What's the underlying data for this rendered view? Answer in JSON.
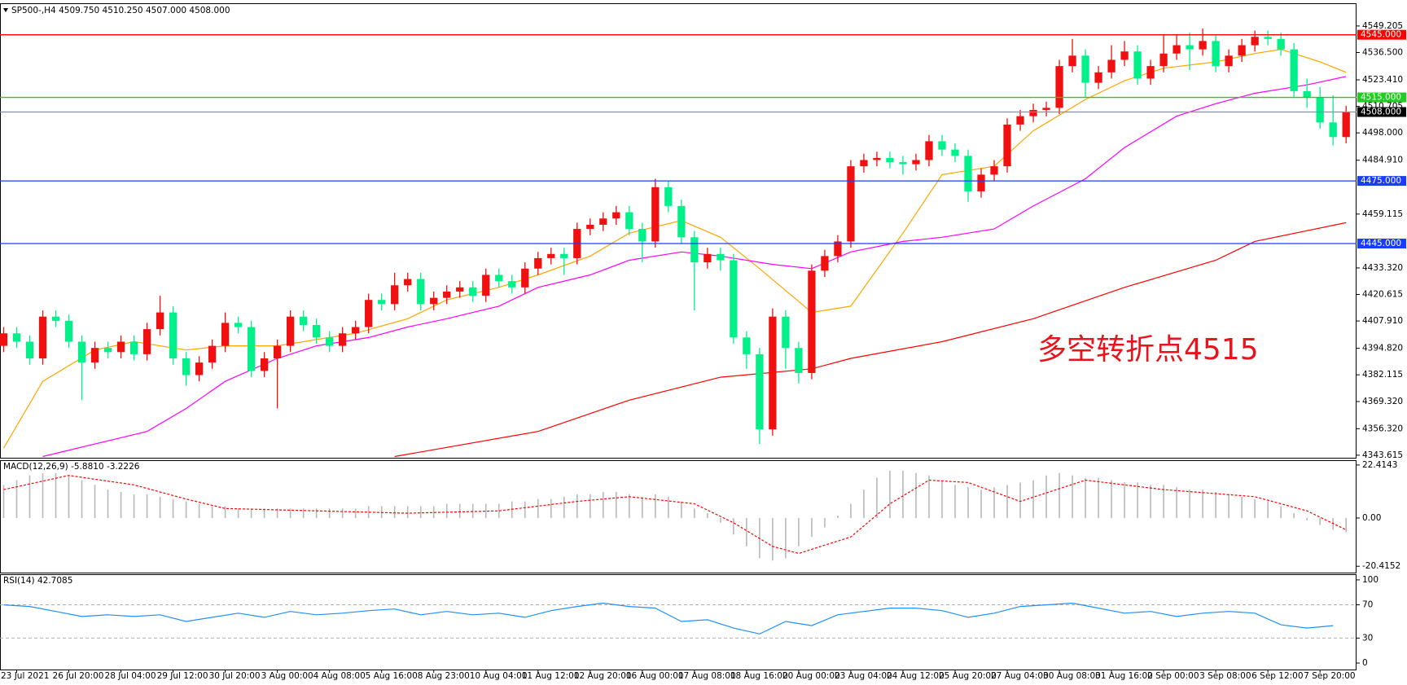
{
  "chart_data": [
    {
      "type": "candlestick",
      "title": "SP500-,H4  4509.750 4510.250 4507.000 4508.000",
      "annotation": "多空转折点4515",
      "up_color": "#f01010",
      "down_color": "#00f08a",
      "xlim": [
        -0.28,
        103.8
      ],
      "xticks": [
        {
          "value": 1,
          "label": "23 Jul 2021"
        },
        {
          "value": 5,
          "label": "26 Jul 20:00"
        },
        {
          "value": 9,
          "label": "28 Jul 04:00"
        },
        {
          "value": 13,
          "label": "29 Jul 12:00"
        },
        {
          "value": 17,
          "label": "30 Jul 20:00"
        },
        {
          "value": 21,
          "label": "3 Aug 00:00"
        },
        {
          "value": 25,
          "label": "4 Aug 08:00"
        },
        {
          "value": 29,
          "label": "5 Aug 16:00"
        },
        {
          "value": 33,
          "label": "8 Aug 23:00"
        },
        {
          "value": 37,
          "label": "10 Aug 04:00"
        },
        {
          "value": 41,
          "label": "11 Aug 12:00"
        },
        {
          "value": 45,
          "label": "12 Aug 20:00"
        },
        {
          "value": 49,
          "label": "16 Aug 00:00"
        },
        {
          "value": 53,
          "label": "17 Aug 08:00"
        },
        {
          "value": 57,
          "label": "18 Aug 16:00"
        },
        {
          "value": 61,
          "label": "20 Aug 00:00"
        },
        {
          "value": 65,
          "label": "23 Aug 04:00"
        },
        {
          "value": 69,
          "label": "24 Aug 12:00"
        },
        {
          "value": 73,
          "label": "25 Aug 20:00"
        },
        {
          "value": 77,
          "label": "27 Aug 04:00"
        },
        {
          "value": 81,
          "label": "30 Aug 08:00"
        },
        {
          "value": 85,
          "label": "31 Aug 16:00"
        },
        {
          "value": 89,
          "label": "2 Sep 00:00"
        },
        {
          "value": 93,
          "label": "3 Sep 08:00"
        },
        {
          "value": 97,
          "label": "6 Sep 12:00"
        },
        {
          "value": 101,
          "label": "7 Sep 20:00"
        }
      ],
      "ylim": [
        4342.4,
        4559.7
      ],
      "yticks": [
        {
          "value": 4549.205,
          "label": "4549.205"
        },
        {
          "value": 4536.5,
          "label": "4536.500"
        },
        {
          "value": 4523.41,
          "label": "4523.410"
        },
        {
          "value": 4510.705,
          "label": "4510.705"
        },
        {
          "value": 4498,
          "label": "4498.000"
        },
        {
          "value": 4484.91,
          "label": "4484.910"
        },
        {
          "value": 4459.115,
          "label": "4459.115"
        },
        {
          "value": 4433.32,
          "label": "4433.320"
        },
        {
          "value": 4420.615,
          "label": "4420.615"
        },
        {
          "value": 4407.91,
          "label": "4407.910"
        },
        {
          "value": 4394.82,
          "label": "4394.820"
        },
        {
          "value": 4382.115,
          "label": "4382.115"
        },
        {
          "value": 4369.32,
          "label": "4369.320"
        },
        {
          "value": 4356.32,
          "label": "4356.320"
        },
        {
          "value": 4343.615,
          "label": "4343.615"
        }
      ],
      "open": [
        4396,
        4402,
        4398,
        4390,
        4410,
        4408,
        4398,
        4388,
        4395,
        4393,
        4398,
        4392,
        4404,
        4412,
        4390,
        4382,
        4388,
        4396,
        4407,
        4405,
        4384,
        4390,
        4396,
        4410,
        4406,
        4400,
        4396,
        4402,
        4405,
        4418,
        4416,
        4425,
        4428,
        4416,
        4419,
        4422,
        4424,
        4420,
        4430,
        4427,
        4424,
        4433,
        4438,
        4440,
        4438,
        4452,
        4454,
        4457,
        4460,
        4452,
        4446,
        4472,
        4463,
        4448,
        4436,
        4440,
        4437,
        4400,
        4392,
        4356,
        4410,
        4395,
        4383,
        4432,
        4439,
        4446,
        4482,
        4485,
        4486,
        4484,
        4483,
        4485,
        4494,
        4490,
        4487,
        4470,
        4478,
        4482,
        4502,
        4506,
        4509,
        4510,
        4530,
        4535,
        4522,
        4527,
        4533,
        4537,
        4524,
        4530,
        4536,
        4540,
        4538,
        4542,
        4530,
        4535,
        4540,
        4544,
        4543,
        4538,
        4518,
        4515,
        4503,
        4496
      ],
      "high": [
        4405,
        4405,
        4401,
        4413,
        4413,
        4411,
        4401,
        4398,
        4398,
        4401,
        4401,
        4407,
        4420,
        4415,
        4393,
        4391,
        4399,
        4412,
        4410,
        4408,
        4393,
        4399,
        4413,
        4413,
        4409,
        4403,
        4405,
        4408,
        4421,
        4421,
        4431,
        4431,
        4431,
        4422,
        4425,
        4427,
        4427,
        4433,
        4433,
        4430,
        4436,
        4441,
        4443,
        4443,
        4455,
        4457,
        4460,
        4463,
        4463,
        4455,
        4476,
        4475,
        4466,
        4451,
        4443,
        4443,
        4440,
        4403,
        4395,
        4414,
        4413,
        4398,
        4435,
        4442,
        4449,
        4485,
        4488,
        4489,
        4489,
        4487,
        4488,
        4497,
        4497,
        4493,
        4490,
        4481,
        4485,
        4505,
        4509,
        4512,
        4513,
        4533,
        4543,
        4538,
        4530,
        4540,
        4542,
        4540,
        4533,
        4545,
        4545,
        4546,
        4548,
        4545,
        4538,
        4543,
        4547,
        4547,
        4546,
        4541,
        4524,
        4520,
        4516,
        4511
      ],
      "low": [
        4393,
        4395,
        4387,
        4387,
        4405,
        4395,
        4370,
        4385,
        4390,
        4390,
        4389,
        4389,
        4401,
        4387,
        4377,
        4379,
        4385,
        4393,
        4402,
        4381,
        4381,
        4366,
        4393,
        4403,
        4397,
        4393,
        4393,
        4399,
        4402,
        4413,
        4413,
        4422,
        4413,
        4413,
        4416,
        4419,
        4417,
        4417,
        4424,
        4421,
        4421,
        4430,
        4435,
        4430,
        4435,
        4449,
        4451,
        4454,
        4449,
        4436,
        4443,
        4460,
        4445,
        4413,
        4433,
        4432,
        4397,
        4385,
        4349,
        4353,
        4385,
        4378,
        4380,
        4429,
        4436,
        4443,
        4479,
        4482,
        4481,
        4478,
        4480,
        4482,
        4487,
        4484,
        4465,
        4467,
        4475,
        4479,
        4499,
        4503,
        4506,
        4507,
        4527,
        4515,
        4519,
        4524,
        4530,
        4521,
        4521,
        4527,
        4533,
        4528,
        4535,
        4527,
        4527,
        4532,
        4537,
        4540,
        4535,
        4515,
        4510,
        4500,
        4492,
        4493
      ],
      "close": [
        4402,
        4398,
        4390,
        4410,
        4408,
        4398,
        4388,
        4395,
        4393,
        4398,
        4392,
        4404,
        4412,
        4390,
        4382,
        4388,
        4396,
        4407,
        4405,
        4384,
        4390,
        4396,
        4410,
        4406,
        4400,
        4396,
        4402,
        4405,
        4418,
        4416,
        4425,
        4428,
        4416,
        4419,
        4422,
        4424,
        4420,
        4430,
        4427,
        4424,
        4433,
        4438,
        4440,
        4438,
        4452,
        4454,
        4457,
        4460,
        4452,
        4446,
        4472,
        4463,
        4448,
        4436,
        4440,
        4437,
        4400,
        4392,
        4356,
        4410,
        4395,
        4383,
        4432,
        4439,
        4446,
        4482,
        4485,
        4486,
        4484,
        4483,
        4485,
        4494,
        4490,
        4487,
        4470,
        4478,
        4482,
        4502,
        4506,
        4509,
        4510,
        4530,
        4535,
        4522,
        4527,
        4533,
        4537,
        4524,
        4530,
        4536,
        4540,
        4538,
        4542,
        4530,
        4535,
        4540,
        4544,
        4543,
        4538,
        4518,
        4515,
        4503,
        4496,
        4508
      ],
      "moving_averages": [
        {
          "color": "#ffa500",
          "x": [
            0,
            3,
            7,
            10,
            14,
            17,
            21,
            24,
            27,
            31,
            34,
            38,
            41,
            45,
            48,
            52,
            55,
            58,
            62,
            65,
            69,
            72,
            76,
            79,
            83,
            86,
            89,
            93,
            96,
            98,
            101,
            103
          ],
          "values": [
            4347,
            4379,
            4394,
            4398,
            4394,
            4396,
            4396,
            4399,
            4402,
            4409,
            4418,
            4424,
            4430,
            4439,
            4450,
            4456,
            4448,
            4433,
            4412,
            4415,
            4450,
            4478,
            4482,
            4499,
            4514,
            4523,
            4529,
            4532,
            4536,
            4538,
            4532,
            4527
          ]
        },
        {
          "color": "#ff00ff",
          "x": [
            3,
            7,
            11,
            14,
            17,
            21,
            24,
            28,
            31,
            34,
            38,
            41,
            45,
            48,
            52,
            55,
            59,
            62,
            65,
            69,
            72,
            76,
            79,
            83,
            86,
            90,
            93,
            96,
            100,
            103
          ],
          "values": [
            4343,
            4349,
            4355,
            4366,
            4379,
            4390,
            4396,
            4400,
            4405,
            4409,
            4415,
            4424,
            4430,
            4437,
            4441,
            4439,
            4435,
            4433,
            4441,
            4446,
            4448,
            4452,
            4463,
            4476,
            4491,
            4506,
            4512,
            4517,
            4521,
            4525
          ]
        },
        {
          "color": "#ff0000",
          "x": [
            30,
            41,
            48,
            55,
            62,
            65,
            72,
            79,
            86,
            93,
            96,
            103
          ],
          "values": [
            4343,
            4355,
            4370,
            4381,
            4385,
            4390,
            4398,
            4409,
            4424,
            4437,
            4446,
            4455
          ]
        }
      ],
      "levels": [
        {
          "value": 4545,
          "label": "4545.000",
          "color": "#ff0000"
        },
        {
          "value": 4515,
          "label": "4515.000",
          "color": "#22cc22"
        },
        {
          "value": 4475,
          "label": "4475.000",
          "color": "#1a3cff"
        },
        {
          "value": 4445,
          "label": "4445.000",
          "color": "#1a3cff"
        },
        {
          "value": 4508,
          "label": "4508.000",
          "color": "#8090a0",
          "label_color": "#000000"
        }
      ]
    },
    {
      "type": "macd",
      "title": "MACD(12,26,9) -5.8810 -3.2226",
      "ylim": [
        -23.1,
        24.1
      ],
      "yticks": [
        {
          "value": 22.4143,
          "label": "22.4143"
        },
        {
          "value": 0,
          "label": "0.00"
        },
        {
          "value": -20.4152,
          "label": "-20.4152"
        }
      ],
      "color": "#b8b8b8",
      "values": [
        14,
        16,
        18,
        19,
        19,
        18,
        16,
        14,
        12,
        11,
        10,
        10,
        9,
        8,
        7,
        6,
        5,
        5,
        4,
        4,
        4,
        4,
        4,
        4,
        4,
        4,
        4,
        4,
        5,
        5,
        5,
        5,
        5,
        5,
        6,
        6,
        6,
        6,
        6,
        7,
        7,
        8,
        8,
        9,
        10,
        10,
        11,
        11,
        10,
        9,
        10,
        9,
        7,
        4,
        2,
        -2,
        -7,
        -12,
        -17,
        -18,
        -17,
        -12,
        -8,
        -4,
        1,
        6,
        12,
        17,
        20,
        20,
        19,
        18,
        16,
        14,
        13,
        12,
        13,
        14,
        15,
        16,
        18,
        19,
        18,
        17,
        17,
        16,
        15,
        15,
        14,
        14,
        13,
        12,
        12,
        11,
        10,
        9,
        8,
        7,
        5,
        2,
        -1,
        -3,
        -5,
        -6
      ],
      "signal": {
        "color": "#ff0000",
        "x": [
          0,
          5,
          10,
          14,
          17,
          24,
          31,
          38,
          44,
          48,
          53,
          56,
          59,
          61,
          65,
          68,
          71,
          74,
          78,
          83,
          89,
          96,
          100,
          103
        ],
        "values": [
          12,
          18,
          14,
          8,
          4,
          3,
          2,
          3,
          7,
          9,
          6,
          -2,
          -12,
          -15,
          -8,
          6,
          16,
          15,
          7,
          16,
          12,
          9,
          3,
          -5
        ]
      }
    },
    {
      "type": "line",
      "title": "RSI(14) 42.7085",
      "ylim": [
        -7.8,
        105.8
      ],
      "yticks": [
        100,
        70,
        30,
        0
      ],
      "levels": [
        70,
        30
      ],
      "color": "#1e90ff",
      "x": [
        0,
        2,
        4,
        6,
        8,
        10,
        12,
        14,
        16,
        18,
        20,
        22,
        24,
        26,
        28,
        30,
        32,
        34,
        36,
        38,
        40,
        42,
        44,
        46,
        48,
        50,
        52,
        54,
        56,
        58,
        60,
        62,
        64,
        66,
        68,
        70,
        72,
        74,
        76,
        78,
        80,
        82,
        84,
        86,
        88,
        90,
        92,
        94,
        96,
        98,
        100,
        102
      ],
      "values": [
        70,
        68,
        62,
        56,
        58,
        56,
        58,
        50,
        55,
        60,
        55,
        62,
        58,
        60,
        63,
        65,
        58,
        62,
        58,
        60,
        55,
        63,
        68,
        72,
        68,
        66,
        50,
        52,
        42,
        35,
        50,
        45,
        58,
        62,
        66,
        66,
        63,
        55,
        60,
        68,
        70,
        72,
        66,
        60,
        62,
        56,
        60,
        62,
        60,
        46,
        42,
        45
      ]
    }
  ]
}
